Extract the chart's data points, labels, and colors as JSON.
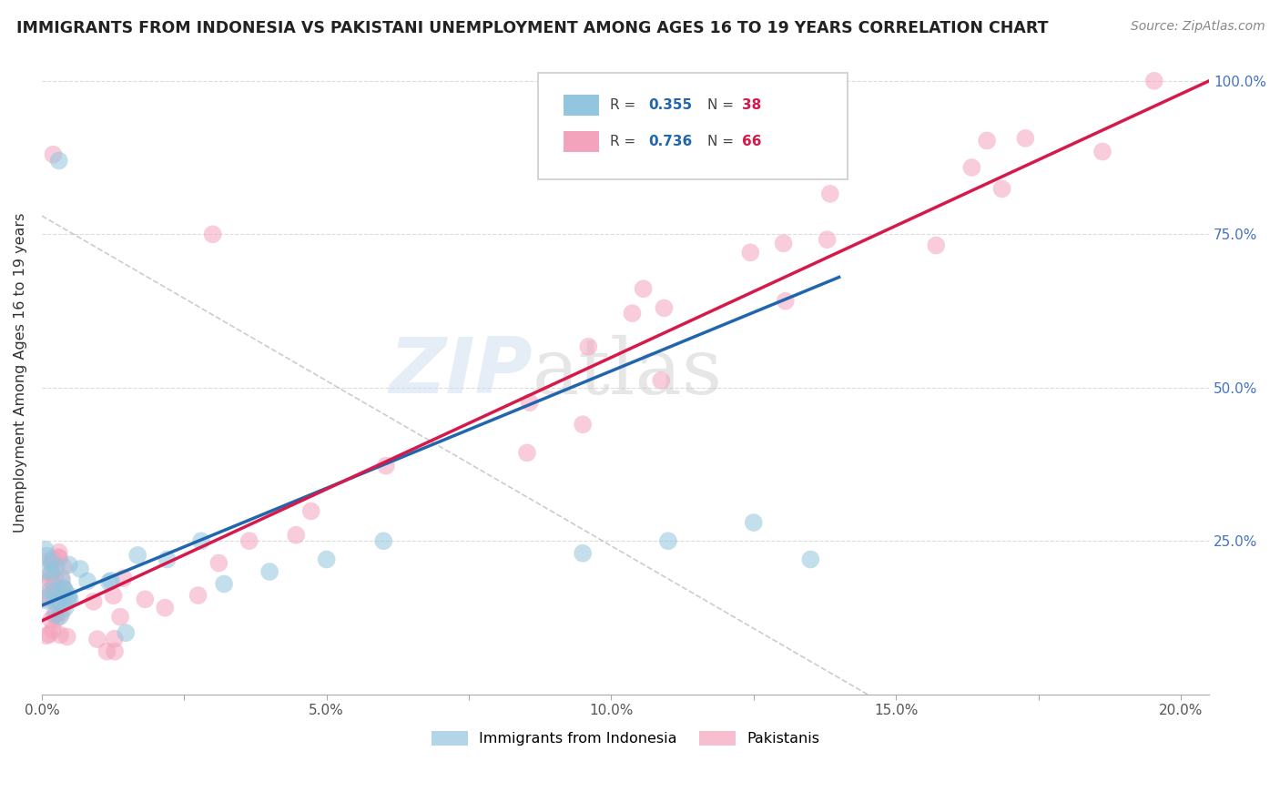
{
  "title": "IMMIGRANTS FROM INDONESIA VS PAKISTANI UNEMPLOYMENT AMONG AGES 16 TO 19 YEARS CORRELATION CHART",
  "source": "Source: ZipAtlas.com",
  "ylabel": "Unemployment Among Ages 16 to 19 years",
  "ylim": [
    0.0,
    1.05
  ],
  "xlim": [
    0.0,
    0.205
  ],
  "yticks": [
    0.0,
    0.25,
    0.5,
    0.75,
    1.0
  ],
  "ytick_labels_right": [
    "",
    "25.0%",
    "50.0%",
    "75.0%",
    "100.0%"
  ],
  "xtick_labels": [
    "0.0%",
    "",
    "5.0%",
    "",
    "10.0%",
    "",
    "15.0%",
    "",
    "20.0%"
  ],
  "xticks": [
    0.0,
    0.025,
    0.05,
    0.075,
    0.1,
    0.125,
    0.15,
    0.175,
    0.2
  ],
  "color_indonesia": "#92c5de",
  "color_pakistan": "#f4a3bc",
  "color_indonesia_line": "#2166ac",
  "color_pakistan_line": "#d6194b",
  "color_dash_line": "#aaaaaa",
  "watermark_zip": "ZIP",
  "watermark_atlas": "atlas",
  "legend_r1": "R = 0.355",
  "legend_n1": "N = 38",
  "legend_r2": "R = 0.736",
  "legend_n2": "N = 66",
  "legend_color1": "#92c5de",
  "legend_color2": "#f4a3bc",
  "legend_r_color": "#2166ac",
  "legend_n_color": "#d6194b",
  "ytick_color": "#4472c4"
}
